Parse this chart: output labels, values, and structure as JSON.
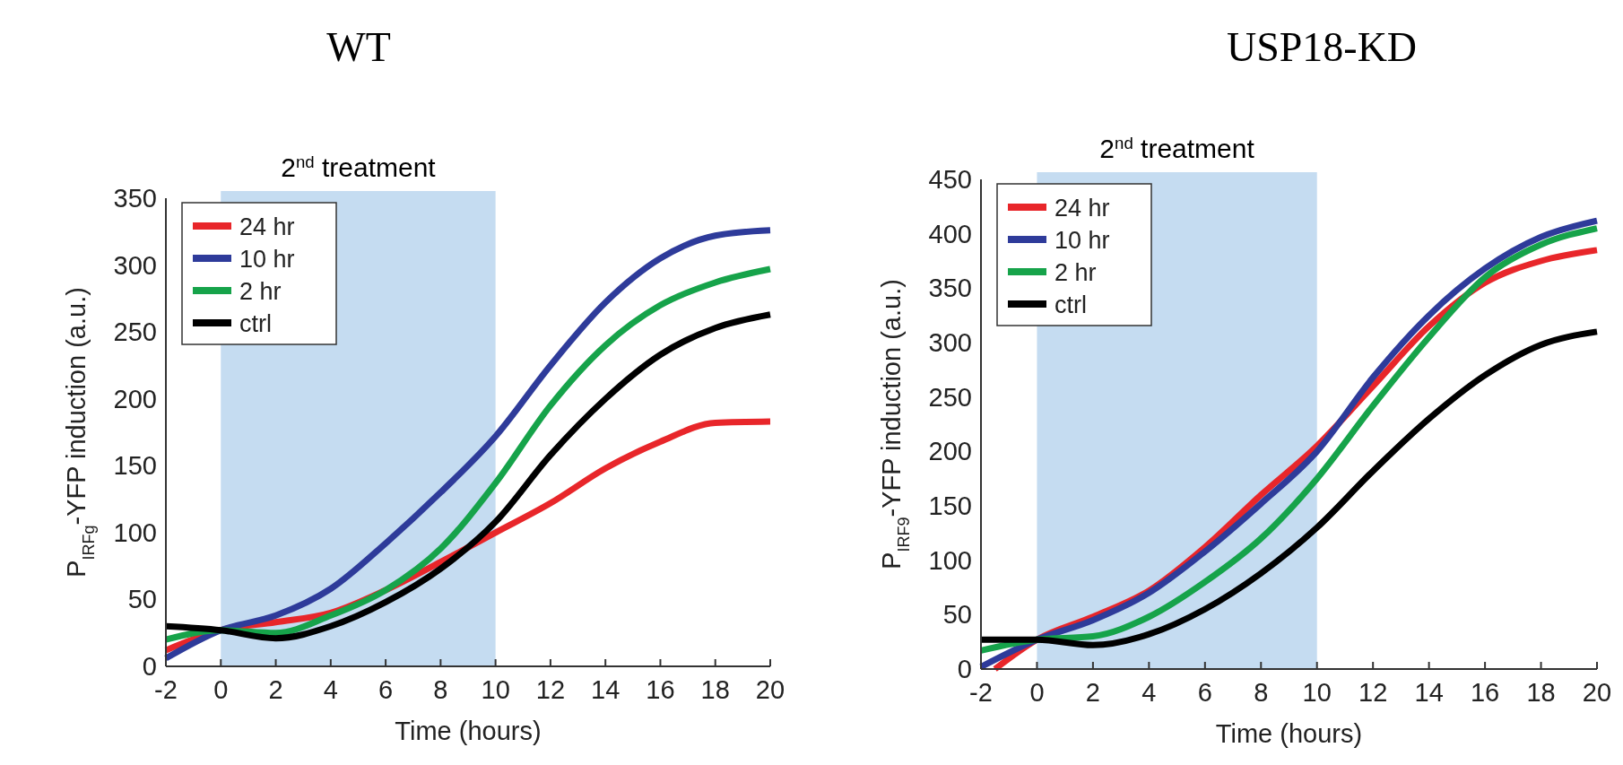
{
  "chart_data": [
    {
      "type": "line",
      "title": "WT",
      "xlabel": "Time (hours)",
      "ylabel": "P$_{IRFg}$-YFP induction (a.u.)",
      "x": [
        -2,
        0,
        2,
        4,
        6,
        8,
        10,
        12,
        14,
        16,
        18,
        20
      ],
      "series": [
        {
          "name": "24 hr",
          "color": "#e8262a",
          "values": [
            12,
            27,
            33,
            40,
            57,
            78,
            100,
            122,
            148,
            168,
            182,
            183
          ]
        },
        {
          "name": "10 hr",
          "color": "#2e3b9a",
          "values": [
            6,
            27,
            38,
            58,
            92,
            130,
            172,
            225,
            272,
            305,
            322,
            326
          ]
        },
        {
          "name": "2 hr",
          "color": "#16a34a",
          "values": [
            20,
            27,
            25,
            38,
            57,
            88,
            137,
            195,
            240,
            270,
            287,
            297
          ]
        },
        {
          "name": "ctrl",
          "color": "#000000",
          "values": [
            30,
            27,
            21,
            30,
            48,
            73,
            108,
            158,
            200,
            233,
            253,
            263
          ]
        }
      ],
      "xlim": [
        -2,
        20
      ],
      "xticks": [
        -2,
        0,
        2,
        4,
        6,
        8,
        10,
        12,
        14,
        16,
        18,
        20
      ],
      "ylim": [
        0,
        350
      ],
      "yticks": [
        0,
        50,
        100,
        150,
        200,
        250,
        300,
        350
      ],
      "bands": [
        {
          "axis": "x",
          "from": 0,
          "to": 10,
          "label": "2$^{nd}$ treatment",
          "color": "#c5dcf1"
        }
      ],
      "legend": "top left",
      "grid": false,
      "line_style": "solid"
    },
    {
      "type": "line",
      "title": "USP18-KD",
      "xlabel": "Time (hours)",
      "ylabel": "P$_{IRF9}$-YFP induction (a.u.)",
      "x": [
        -2,
        0,
        2,
        4,
        6,
        8,
        10,
        12,
        14,
        16,
        18,
        20
      ],
      "series": [
        {
          "name": "24 hr",
          "color": "#e8262a",
          "x": [
            -1.5,
            0,
            2,
            4,
            6,
            8,
            10,
            12,
            14,
            16,
            18,
            20
          ],
          "values": [
            0,
            27,
            48,
            72,
            112,
            160,
            205,
            260,
            315,
            355,
            375,
            385
          ]
        },
        {
          "name": "10 hr",
          "color": "#2e3b9a",
          "values": [
            2,
            27,
            45,
            70,
            108,
            152,
            200,
            268,
            325,
            368,
            397,
            412
          ]
        },
        {
          "name": "2 hr",
          "color": "#16a34a",
          "values": [
            17,
            27,
            30,
            48,
            80,
            120,
            175,
            242,
            305,
            360,
            390,
            405
          ]
        },
        {
          "name": "ctrl",
          "color": "#000000",
          "values": [
            27,
            27,
            22,
            32,
            55,
            88,
            130,
            182,
            230,
            270,
            298,
            310
          ]
        }
      ],
      "xlim": [
        -2,
        20
      ],
      "xticks": [
        -2,
        0,
        2,
        4,
        6,
        8,
        10,
        12,
        14,
        16,
        18,
        20
      ],
      "ylim": [
        0,
        450
      ],
      "yticks": [
        0,
        50,
        100,
        150,
        200,
        250,
        300,
        350,
        400,
        450
      ],
      "bands": [
        {
          "axis": "x",
          "from": 0,
          "to": 10,
          "label": "2$^{nd}$ treatment",
          "color": "#c5dcf1"
        }
      ],
      "legend": "top left",
      "grid": false,
      "line_style": "solid"
    }
  ]
}
